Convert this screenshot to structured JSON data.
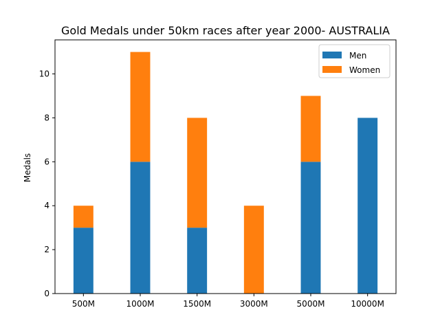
{
  "chart_data": {
    "type": "bar",
    "stacked": true,
    "title": "Gold Medals under 50km races after year 2000- AUSTRALIA",
    "xlabel": "",
    "ylabel": "Medals",
    "categories": [
      "500M",
      "1000M",
      "1500M",
      "3000M",
      "5000M",
      "10000M"
    ],
    "series": [
      {
        "name": "Men",
        "values": [
          3,
          6,
          3,
          0,
          6,
          8
        ],
        "color": "#1f77b4"
      },
      {
        "name": "Women",
        "values": [
          1,
          5,
          5,
          4,
          3,
          0
        ],
        "color": "#ff7f0e"
      }
    ],
    "ylim": [
      0,
      11.55
    ],
    "yticks": [
      0,
      2,
      4,
      6,
      8,
      10
    ],
    "grid": false,
    "legend": "top-right"
  }
}
